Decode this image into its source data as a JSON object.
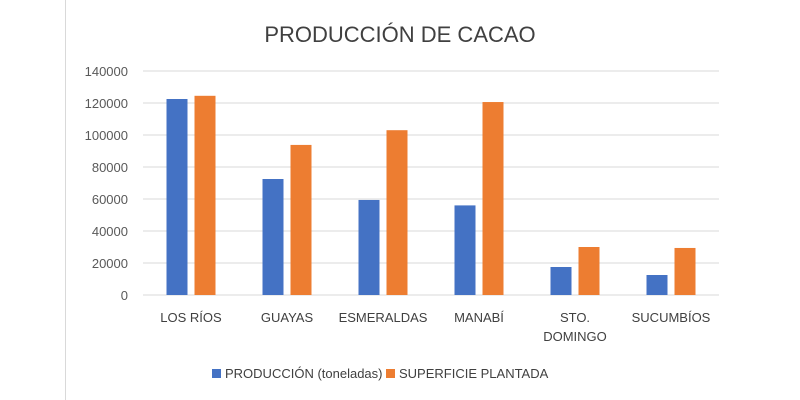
{
  "chart_data": {
    "type": "bar",
    "title": "PRODUCCIÓN DE CACAO",
    "xlabel": "",
    "ylabel": "",
    "ylim": [
      0,
      140000
    ],
    "yticks": [
      0,
      20000,
      40000,
      60000,
      80000,
      100000,
      120000,
      140000
    ],
    "yticks_labels": [
      "0",
      "20000",
      "40000",
      "60000",
      "80000",
      "100000",
      "120000",
      "140000"
    ],
    "grid": true,
    "legend": "bottom",
    "categories": [
      [
        "LOS RÍOS"
      ],
      [
        "GUAYAS"
      ],
      [
        "ESMERALDAS"
      ],
      [
        "MANABÍ"
      ],
      [
        "STO.",
        "DOMINGO"
      ],
      [
        "SUCUMBÍOS"
      ]
    ],
    "series": [
      {
        "name": "PRODUCCIÓN (toneladas)",
        "color": "#4472C4",
        "values": [
          122500,
          72500,
          59400,
          56000,
          17500,
          12500
        ]
      },
      {
        "name": "SUPERFICIE PLANTADA",
        "color": "#ED7D31",
        "values": [
          124500,
          93800,
          103000,
          120600,
          30000,
          29400
        ]
      }
    ]
  }
}
